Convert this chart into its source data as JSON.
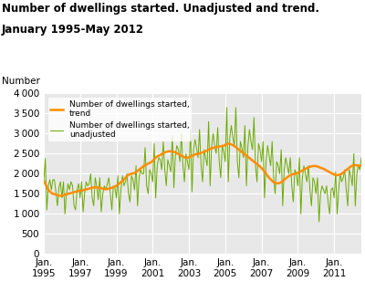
{
  "title_line1": "Number of dwellings started. Unadjusted and trend.",
  "title_line2": "January 1995-May 2012",
  "ylabel": "Number",
  "ylim": [
    0,
    4000
  ],
  "yticks": [
    0,
    500,
    1000,
    1500,
    2000,
    2500,
    3000,
    3500,
    4000
  ],
  "xtick_years": [
    1995,
    1997,
    1999,
    2001,
    2003,
    2005,
    2007,
    2009,
    2011
  ],
  "trend_color": "#FF8C00",
  "unadj_color": "#6AAB00",
  "plot_bg": "#E8E8E8",
  "fig_bg": "#FFFFFF",
  "grid_color": "#FFFFFF",
  "legend_trend": "Number of dwellings started,\ntrend",
  "legend_unadj": "Number of dwellings started,\nunadjusted",
  "trend_values": [
    1820,
    1750,
    1680,
    1600,
    1560,
    1520,
    1500,
    1490,
    1480,
    1470,
    1460,
    1450,
    1450,
    1460,
    1480,
    1490,
    1500,
    1510,
    1520,
    1530,
    1540,
    1550,
    1560,
    1570,
    1575,
    1580,
    1590,
    1600,
    1610,
    1620,
    1630,
    1640,
    1650,
    1660,
    1665,
    1660,
    1655,
    1650,
    1640,
    1630,
    1620,
    1615,
    1620,
    1630,
    1640,
    1650,
    1665,
    1680,
    1700,
    1730,
    1760,
    1790,
    1820,
    1860,
    1900,
    1940,
    1970,
    1990,
    2000,
    2010,
    2020,
    2040,
    2070,
    2100,
    2130,
    2160,
    2190,
    2210,
    2230,
    2250,
    2270,
    2290,
    2320,
    2360,
    2400,
    2430,
    2450,
    2470,
    2490,
    2510,
    2530,
    2545,
    2555,
    2560,
    2560,
    2555,
    2545,
    2530,
    2510,
    2490,
    2470,
    2450,
    2430,
    2410,
    2400,
    2400,
    2410,
    2430,
    2450,
    2465,
    2480,
    2490,
    2500,
    2510,
    2520,
    2530,
    2545,
    2560,
    2580,
    2600,
    2620,
    2635,
    2645,
    2650,
    2660,
    2670,
    2680,
    2685,
    2690,
    2700,
    2720,
    2740,
    2750,
    2745,
    2730,
    2710,
    2690,
    2660,
    2630,
    2600,
    2570,
    2540,
    2510,
    2480,
    2450,
    2420,
    2390,
    2360,
    2330,
    2300,
    2270,
    2240,
    2210,
    2180,
    2140,
    2100,
    2050,
    2000,
    1950,
    1900,
    1860,
    1820,
    1790,
    1770,
    1760,
    1760,
    1770,
    1790,
    1820,
    1850,
    1880,
    1910,
    1940,
    1960,
    1980,
    1990,
    2000,
    2010,
    2020,
    2040,
    2060,
    2080,
    2100,
    2120,
    2140,
    2160,
    2175,
    2185,
    2190,
    2195,
    2190,
    2180,
    2165,
    2150,
    2135,
    2120,
    2100,
    2080,
    2060,
    2040,
    2020,
    2000,
    1980,
    1970,
    1965,
    1970,
    1980,
    2000,
    2030,
    2060,
    2090,
    2120,
    2150,
    2180,
    2200,
    2210,
    2215,
    2210,
    2205,
    2200,
    2195
  ],
  "unadj_values": [
    1820,
    2380,
    1100,
    1700,
    1850,
    1600,
    1850,
    1850,
    1550,
    1200,
    1650,
    1800,
    1400,
    1800,
    1000,
    1500,
    1750,
    1600,
    1800,
    1700,
    1200,
    1100,
    1600,
    1750,
    1400,
    1800,
    1050,
    1500,
    1800,
    1700,
    1750,
    2000,
    1400,
    1200,
    1900,
    1700,
    1350,
    1900,
    1050,
    1500,
    1700,
    1600,
    1750,
    1900,
    1500,
    1100,
    1700,
    1650,
    1400,
    1950,
    1000,
    1600,
    1950,
    1700,
    1800,
    2000,
    1500,
    1300,
    1950,
    1850,
    1600,
    2200,
    1200,
    1900,
    2100,
    2000,
    2000,
    2650,
    1700,
    1500,
    2100,
    2000,
    1800,
    2750,
    1400,
    2200,
    2400,
    2350,
    2100,
    2800,
    2100,
    1700,
    2350,
    2200,
    2050,
    2950,
    1650,
    2450,
    2700,
    2600,
    2300,
    3000,
    2200,
    1800,
    2500,
    2300,
    2100,
    3100,
    1550,
    2600,
    2850,
    2650,
    2400,
    3100,
    2200,
    1800,
    2600,
    2400,
    2200,
    3300,
    1700,
    2700,
    3000,
    2700,
    2500,
    3150,
    2300,
    1900,
    2700,
    2550,
    2300,
    3650,
    1800,
    2900,
    3200,
    2900,
    2700,
    3650,
    2300,
    1900,
    2800,
    2650,
    2400,
    3200,
    1700,
    2700,
    3100,
    2800,
    2600,
    3400,
    2200,
    1800,
    2750,
    2600,
    2300,
    2800,
    1400,
    2300,
    2700,
    2450,
    2200,
    2800,
    1900,
    1500,
    2300,
    2200,
    2000,
    2600,
    1200,
    2100,
    2400,
    2200,
    2000,
    2400,
    1700,
    1300,
    2100,
    2000,
    1700,
    2400,
    1000,
    1900,
    2200,
    2000,
    1800,
    2200,
    1600,
    1200,
    1900,
    1800,
    1500,
    1900,
    800,
    1500,
    1700,
    1600,
    1500,
    1700,
    1300,
    1000,
    1600,
    1650,
    1400,
    2050,
    1000,
    1600,
    2000,
    1800,
    1900,
    2100,
    1600,
    1200,
    2100,
    1950,
    1700,
    2500,
    1200,
    2000,
    2200,
    2100,
    2400
  ]
}
